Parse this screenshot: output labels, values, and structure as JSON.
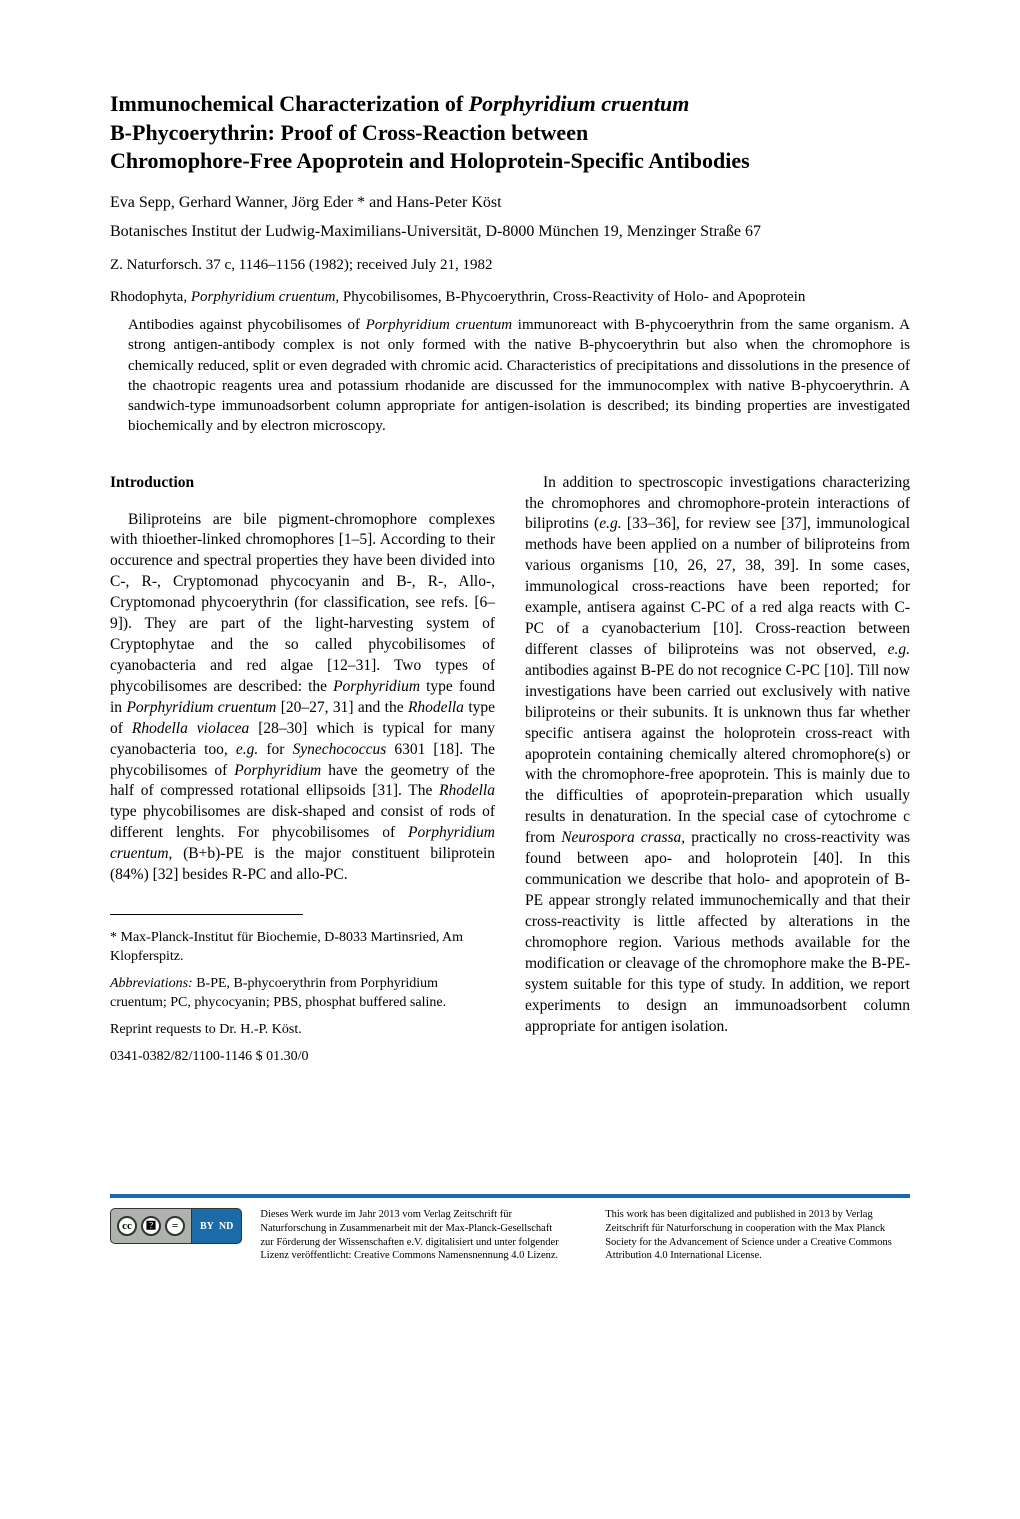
{
  "title_line1": "Immunochemical Characterization of ",
  "title_italic1": "Porphyridium cruentum",
  "title_line2": "B-Phycoerythrin: Proof of Cross-Reaction between",
  "title_line3": "Chromophore-Free Apoprotein and Holoprotein-Specific Antibodies",
  "authors": "Eva Sepp, Gerhard Wanner, Jörg Eder * and Hans-Peter Köst",
  "affiliation": "Botanisches Institut der Ludwig-Maximilians-Universität, D-8000 München 19, Menzinger Straße 67",
  "journal": "Z. Naturforsch. 37 c, 1146–1156 (1982); received July 21, 1982",
  "keywords_line1": "Rhodophyta, ",
  "keywords_italic1": "Porphyridium cruentum,",
  "keywords_line1b": " Phycobilisomes, B-Phycoerythrin, Cross-Reactivity of Holo- and Apoprotein",
  "abstract_p1a": "Antibodies against phycobilisomes of ",
  "abstract_p1_italic1": "Porphyridium cruentum",
  "abstract_p1b": " immunoreact with B-phycoerythrin from the same organism. A strong antigen-antibody complex is not only formed with the native B-phycoerythrin but also when the chromophore is chemically reduced, split or even degraded with chromic acid. Characteristics of precipitations and dissolutions in the presence of the chaotropic reagents urea and potassium rhodanide are discussed for the immunocomplex with native B-phycoerythrin. A sandwich-type immunoadsorbent column appropriate for antigen-isolation is described; its binding properties are investigated biochemically and by electron microscopy.",
  "intro_heading": "Introduction",
  "intro_p1a": "Biliproteins are bile pigment-chromophore complexes with thioether-linked chromophores [1–5]. According to their occurence and spectral properties they have been divided into C-, R-, Cryptomonad phycocyanin and B-, R-, Allo-, Cryptomonad phycoerythrin (for classification, see refs. [6–9]). They are part of the light-harvesting system of Cryptophytae and the so called phycobilisomes of cyanobacteria and red algae [12–31]. Two types of phycobilisomes are described: the ",
  "intro_italic1": "Porphyridium",
  "intro_p1b": " type found in ",
  "intro_italic2": "Porphyridium cruentum",
  "intro_p1c": " [20–27, 31] and the ",
  "intro_italic3": "Rhodella",
  "intro_p1d": " type of ",
  "intro_italic4": "Rhodella violacea",
  "intro_p1e": " [28–30] which is typical for many cyanobacteria too, ",
  "intro_italic5": "e.g.",
  "intro_p1f": " for ",
  "intro_italic6": "Synechococcus",
  "intro_p1g": " 6301 [18]. The phycobilisomes of ",
  "intro_italic7": "Porphyridium",
  "intro_p1h": " have the geometry of the half of compressed rotational ellipsoids [31]. The ",
  "intro_italic8": "Rhodella",
  "intro_p1i": " type phycobilisomes are disk-shaped and consist of rods of different lenghts. For phycobilisomes of ",
  "intro_italic9": "Porphyridium cruentum,",
  "intro_p1j": " (B+b)-PE is the major constituent biliprotein (84%) [32] besides R-PC and allo-PC.",
  "footnote1": "* Max-Planck-Institut für Biochemie, D-8033 Martinsried, Am Klopferspitz.",
  "footnote2_label": "Abbreviations:",
  "footnote2": " B-PE, B-phycoerythrin from Porphyridium cruentum; PC, phycocyanin; PBS, phosphat buffered saline.",
  "footnote3": "Reprint requests to Dr. H.-P. Köst.",
  "footnote4": "0341-0382/82/1100-1146   $ 01.30/0",
  "col2_p1a": "In addition to spectroscopic investigations characterizing the chromophores and chromophore-protein interactions of biliprotins (",
  "col2_italic1": "e.g.",
  "col2_p1b": " [33–36], for review see [37], immunological methods have been applied on a number of biliproteins from various organisms [10, 26, 27, 38, 39]. In some cases, immunological cross-reactions have been reported; for example, antisera against C-PC of a red alga reacts with C-PC of a cyanobacterium [10]. Cross-reaction between different classes of biliproteins was not observed, ",
  "col2_italic2": "e.g.",
  "col2_p1c": " antibodies against B-PE do not recognice C-PC [10]. Till now investigations have been carried out exclusively with native biliproteins or their subunits. It is unknown thus far whether specific antisera against the holoprotein cross-react with apoprotein containing chemically altered chromophore(s) or with the chromophore-free apoprotein. This is mainly due to the difficulties of apoprotein-preparation which usually results in denaturation. In the special case of cytochrome c from ",
  "col2_italic3": "Neurospora crassa,",
  "col2_p1d": " practically no cross-reactivity was found between apo- and holoprotein [40]. In this communication we describe that holo- and apoprotein of B-PE appear strongly related immunochemically and that their cross-reactivity is little affected by alterations in the chromophore region. Various methods available for the modification or cleavage of the chromophore make the B-PE-system suitable for this type of study. In addition, we report experiments to design an immunoadsorbent column appropriate for antigen isolation.",
  "cc_label1": "cc",
  "cc_label2": "🄯",
  "cc_by": "BY",
  "cc_nd": "ND",
  "footer_de": "Dieses Werk wurde im Jahr 2013 vom Verlag Zeitschrift für Naturforschung in Zusammenarbeit mit der Max-Planck-Gesellschaft zur Förderung der Wissenschaften e.V. digitalisiert und unter folgender Lizenz veröffentlicht: Creative Commons Namensnennung 4.0 Lizenz.",
  "footer_en": "This work has been digitalized and published in 2013 by Verlag Zeitschrift für Naturforschung in cooperation with the Max Planck Society for the Advancement of Science under a Creative Commons Attribution 4.0 International License."
}
